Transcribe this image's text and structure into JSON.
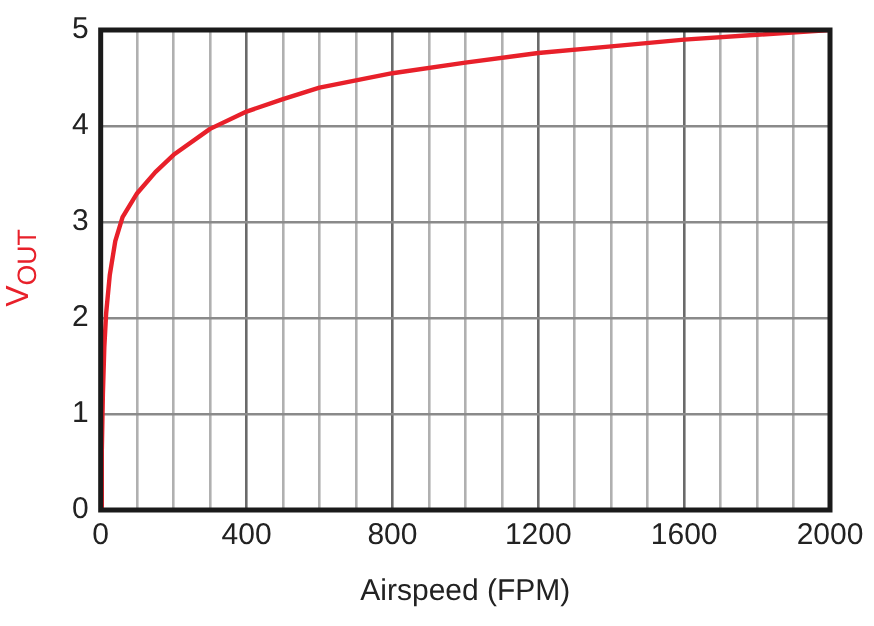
{
  "chart_data": {
    "type": "line",
    "xlabel": "Airspeed (FPM)",
    "ylabel": "V$_{OUT}$",
    "x": [
      0,
      3,
      6,
      10,
      15,
      25,
      40,
      60,
      100,
      150,
      200,
      300,
      400,
      500,
      600,
      800,
      1000,
      1200,
      1400,
      1600,
      1800,
      2000
    ],
    "series": [
      {
        "color": "#e8202a",
        "values": [
          0,
          0.6,
          1.2,
          1.7,
          2.05,
          2.45,
          2.8,
          3.05,
          3.3,
          3.52,
          3.7,
          3.97,
          4.15,
          4.28,
          4.4,
          4.55,
          4.66,
          4.76,
          4.83,
          4.9,
          4.95,
          5.0
        ]
      }
    ],
    "xlim": [
      0,
      2000
    ],
    "xticks": [
      0,
      {
        "value": 100,
        "label": null
      },
      {
        "value": 200,
        "label": null
      },
      {
        "value": 300,
        "label": null
      },
      400,
      {
        "value": 500,
        "label": null
      },
      {
        "value": 600,
        "label": null
      },
      {
        "value": 700,
        "label": null
      },
      800,
      {
        "value": 900,
        "label": null
      },
      {
        "value": 1000,
        "label": null
      },
      {
        "value": 1100,
        "label": null
      },
      1200,
      {
        "value": 1300,
        "label": null
      },
      {
        "value": 1400,
        "label": null
      },
      {
        "value": 1500,
        "label": null
      },
      1600,
      {
        "value": 1700,
        "label": null
      },
      {
        "value": 1800,
        "label": null
      },
      {
        "value": 1900,
        "label": null
      },
      2000
    ],
    "ylim": [
      0,
      5
    ],
    "yticks": [
      0,
      1,
      2,
      3,
      4,
      5
    ],
    "grid": true,
    "marker": "none",
    "line_style": "solid",
    "legend": false
  }
}
